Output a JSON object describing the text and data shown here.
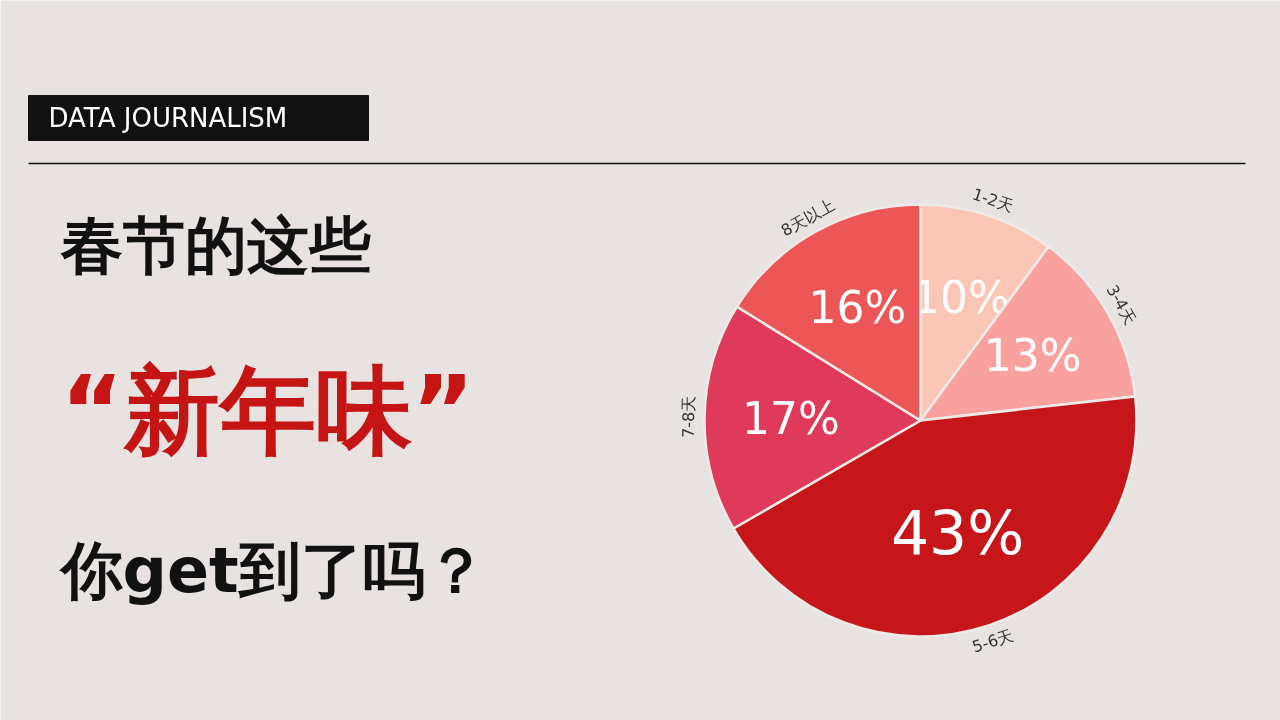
{
  "chart_data": {
    "type": "pie",
    "title": "春节的这些\n“新年味”\n你get到了吗？",
    "annotations": [
      "DATA JOURNALISM"
    ],
    "categories": [
      "1-2天",
      "3-4天",
      "5-6天",
      "7-8天",
      "8天以上"
    ],
    "values": [
      10,
      13,
      43,
      17,
      16
    ],
    "value_labels": [
      "10%",
      "13%",
      "43%",
      "17%",
      "16%"
    ],
    "colors": [
      "#fbc6b6",
      "#f9a19e",
      "#c7161a",
      "#df3a5a",
      "#ec5656"
    ]
  }
}
